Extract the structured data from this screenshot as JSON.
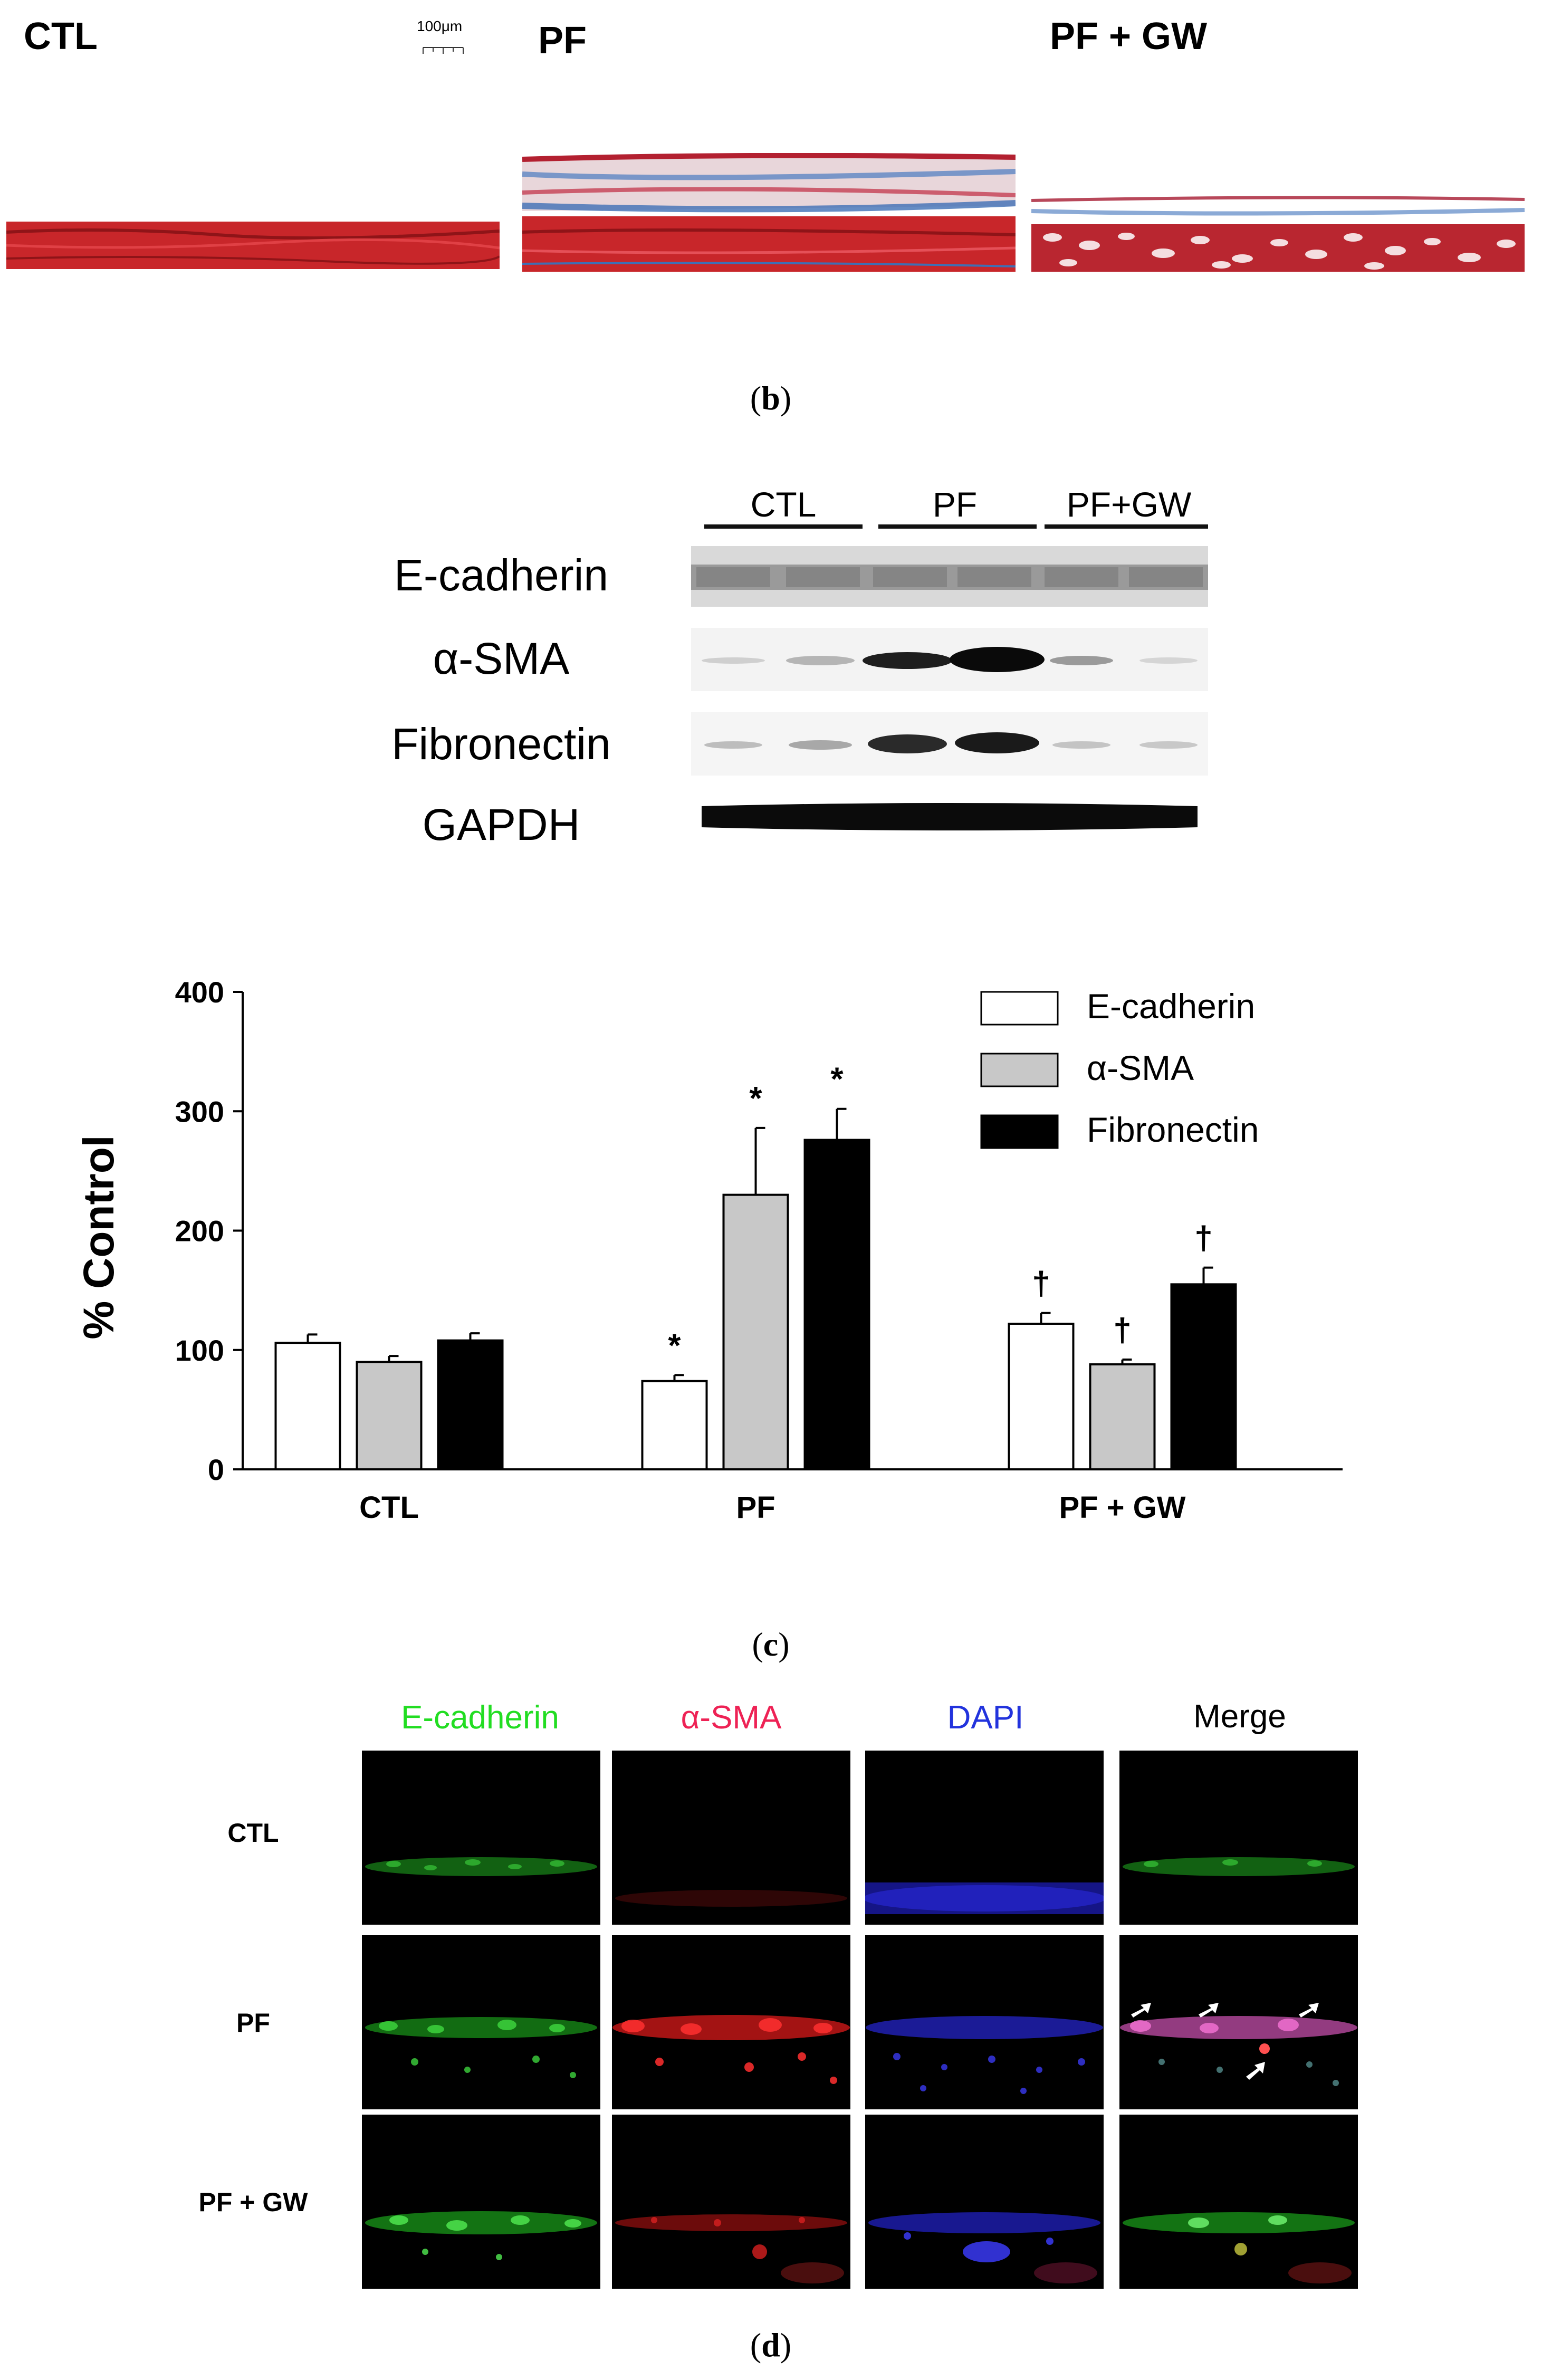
{
  "panel_a": {
    "groups": [
      "CTL",
      "PF",
      "PF + GW"
    ],
    "scale_bar": "100μm"
  },
  "panel_b": {
    "caption_open": "(",
    "caption_letter": "b",
    "caption_close": ")",
    "groups": [
      "CTL",
      "PF",
      "PF+GW"
    ],
    "proteins": [
      "E-cadherin",
      "α-SMA",
      "Fibronectin",
      "GAPDH"
    ]
  },
  "panel_c": {
    "caption_open": "(",
    "caption_letter": "c",
    "caption_close": ")"
  },
  "chart_data": {
    "type": "bar",
    "title": "",
    "xlabel": "",
    "ylabel": "% Control",
    "ylim": [
      0,
      400
    ],
    "yticks": [
      0,
      100,
      200,
      300,
      400
    ],
    "categories": [
      "CTL",
      "PF",
      "PF + GW"
    ],
    "series": [
      {
        "name": "E-cadherin",
        "color": "#ffffff",
        "values": [
          106,
          74,
          122
        ],
        "errors": [
          7,
          5,
          9
        ],
        "markers": [
          "",
          "*",
          "†"
        ]
      },
      {
        "name": "α-SMA",
        "color": "#c8c8c8",
        "values": [
          90,
          230,
          88
        ],
        "errors": [
          5,
          56,
          4
        ],
        "markers": [
          "",
          "*",
          "†"
        ]
      },
      {
        "name": "Fibronectin",
        "color": "#000000",
        "values": [
          108,
          276,
          155
        ],
        "errors": [
          6,
          26,
          14
        ],
        "markers": [
          "",
          "*",
          "†"
        ]
      }
    ],
    "legend_position": "top-right",
    "grid": false
  },
  "panel_d": {
    "caption_open": "(",
    "caption_letter": "d",
    "caption_close": ")",
    "channels": [
      {
        "label": "E-cadherin",
        "color": "#22dd22"
      },
      {
        "label": "α-SMA",
        "color": "#ee2255"
      },
      {
        "label": "DAPI",
        "color": "#2233dd"
      },
      {
        "label": "Merge",
        "color": "#000000"
      }
    ],
    "rows": [
      "CTL",
      "PF",
      "PF + GW"
    ]
  }
}
